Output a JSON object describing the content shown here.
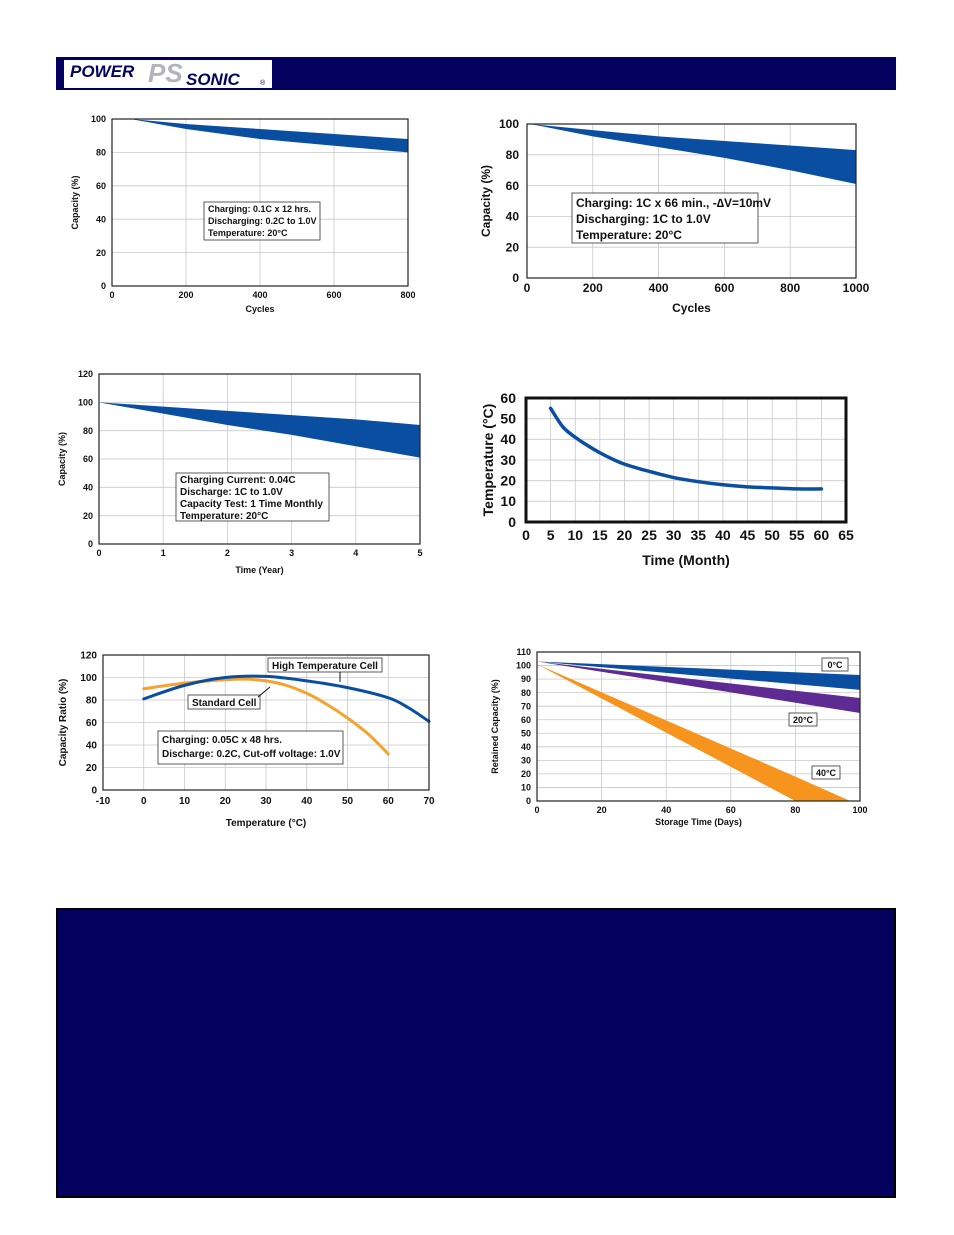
{
  "header": {
    "logo_word1": "POWER",
    "logo_mono": "PS",
    "logo_word2": "SONIC",
    "logo_reg": "®",
    "bar_color": "#03035f"
  },
  "chart_data": [
    {
      "id": "c1",
      "type": "area",
      "title": "",
      "xlabel": "Cycles",
      "ylabel": "Capacity (%)",
      "xlim": [
        0,
        800
      ],
      "ylim": [
        0,
        100
      ],
      "xticks": [
        0,
        200,
        400,
        600,
        800
      ],
      "yticks": [
        0,
        20,
        40,
        60,
        80,
        100
      ],
      "grid": true,
      "color": "#0a4ea2",
      "band": {
        "x": [
          50,
          200,
          400,
          600,
          800
        ],
        "upper": [
          100,
          97,
          94,
          91,
          88
        ],
        "lower": [
          100,
          94,
          88,
          84,
          80
        ]
      },
      "annotation": [
        "Charging: 0.1C x 12 hrs.",
        "Discharging: 0.2C to 1.0V",
        "Temperature: 20°C"
      ]
    },
    {
      "id": "c2",
      "type": "area",
      "title": "",
      "xlabel": "Cycles",
      "ylabel": "Capacity (%)",
      "xlim": [
        0,
        1000
      ],
      "ylim": [
        0,
        100
      ],
      "xticks": [
        0,
        200,
        400,
        600,
        800,
        1000
      ],
      "yticks": [
        0,
        20,
        40,
        60,
        80,
        100
      ],
      "grid": true,
      "color": "#0a4ea2",
      "band": {
        "x": [
          10,
          200,
          400,
          600,
          800,
          1000
        ],
        "upper": [
          100,
          96,
          92,
          89,
          86,
          83
        ],
        "lower": [
          100,
          92,
          85,
          78,
          70,
          61
        ]
      },
      "annotation": [
        "Charging: 1C x 66 min., -∆V=10mV",
        "Discharging: 1C to 1.0V",
        "Temperature: 20°C"
      ]
    },
    {
      "id": "c3",
      "type": "area",
      "title": "",
      "xlabel": "Time (Year)",
      "ylabel": "Capacity (%)",
      "xlim": [
        0,
        5
      ],
      "ylim": [
        0,
        120
      ],
      "xticks": [
        0,
        1,
        2,
        3,
        4,
        5
      ],
      "yticks": [
        0,
        20,
        40,
        60,
        80,
        100,
        120
      ],
      "grid": true,
      "color": "#0a4ea2",
      "band": {
        "x": [
          0,
          1,
          2,
          3,
          4,
          5
        ],
        "upper": [
          100,
          97,
          94,
          91,
          88,
          84
        ],
        "lower": [
          100,
          92,
          84,
          77,
          69,
          61
        ]
      },
      "annotation": [
        "Charging Current: 0.04C",
        "Discharge: 1C to 1.0V",
        "Capacity Test: 1 Time Monthly",
        "Temperature: 20°C"
      ]
    },
    {
      "id": "c4",
      "type": "line",
      "title": "",
      "xlabel": "Time (Month)",
      "ylabel": "Temperature (°C)",
      "xlim": [
        0,
        65
      ],
      "ylim": [
        0,
        60
      ],
      "xticks": [
        0,
        5,
        10,
        15,
        20,
        25,
        30,
        35,
        40,
        45,
        50,
        55,
        60,
        65
      ],
      "yticks": [
        0,
        10,
        20,
        30,
        40,
        50,
        60
      ],
      "grid": true,
      "series": [
        {
          "name": "",
          "color": "#0a4ea2",
          "x": [
            5,
            7.5,
            10,
            12.5,
            15,
            17.5,
            20,
            25,
            30,
            35,
            40,
            45,
            50,
            55,
            60
          ],
          "y": [
            55,
            46,
            41,
            37,
            33.5,
            30.5,
            28,
            24.5,
            21.5,
            19.5,
            18,
            17,
            16.5,
            16,
            16
          ]
        }
      ]
    },
    {
      "id": "c5",
      "type": "line",
      "title": "",
      "xlabel": "Temperature (°C)",
      "ylabel": "Capacity Ratio (%)",
      "xlim": [
        -10,
        70
      ],
      "ylim": [
        0,
        120
      ],
      "xticks": [
        -10,
        0,
        10,
        20,
        30,
        40,
        50,
        60,
        70
      ],
      "yticks": [
        0,
        20,
        40,
        60,
        80,
        100,
        120
      ],
      "grid": true,
      "series": [
        {
          "name": "Standard Cell",
          "color": "#f5a230",
          "x": [
            0,
            10,
            20,
            25,
            30,
            35,
            40,
            45,
            50,
            55,
            60
          ],
          "y": [
            90,
            95,
            98,
            98.5,
            97,
            93,
            86,
            76,
            64,
            50,
            32
          ]
        },
        {
          "name": "High Temperature Cell",
          "color": "#0a4ea2",
          "x": [
            0,
            10,
            20,
            30,
            40,
            50,
            60,
            65,
            70
          ],
          "y": [
            81,
            93,
            100,
            101,
            97,
            91,
            82,
            73,
            61
          ]
        }
      ],
      "annotation": [
        "Charging: 0.05C x 48 hrs.",
        "Discharge: 0.2C, Cut-off voltage: 1.0V"
      ]
    },
    {
      "id": "c6",
      "type": "area",
      "title": "",
      "xlabel": "Storage Time (Days)",
      "ylabel": "Retained Capacity (%)",
      "xlim": [
        0,
        100
      ],
      "ylim": [
        0,
        110
      ],
      "xticks": [
        0,
        20,
        40,
        60,
        80,
        100
      ],
      "yticks": [
        0,
        10,
        20,
        30,
        40,
        50,
        60,
        70,
        80,
        90,
        100,
        110
      ],
      "grid": true,
      "bands": [
        {
          "name": "0°C",
          "color": "#0a4ea2",
          "x": [
            0,
            100
          ],
          "upper": [
            103,
            93
          ],
          "lower": [
            103,
            82
          ]
        },
        {
          "name": "20°C",
          "color": "#5d2b91",
          "x": [
            0,
            100
          ],
          "upper": [
            103,
            76
          ],
          "lower": [
            103,
            65
          ]
        },
        {
          "name": "40°C",
          "color": "#f7941d",
          "x": [
            0,
            80,
            97
          ],
          "upper": [
            101,
            18,
            0
          ],
          "lower": [
            101,
            0,
            0
          ]
        }
      ]
    }
  ]
}
